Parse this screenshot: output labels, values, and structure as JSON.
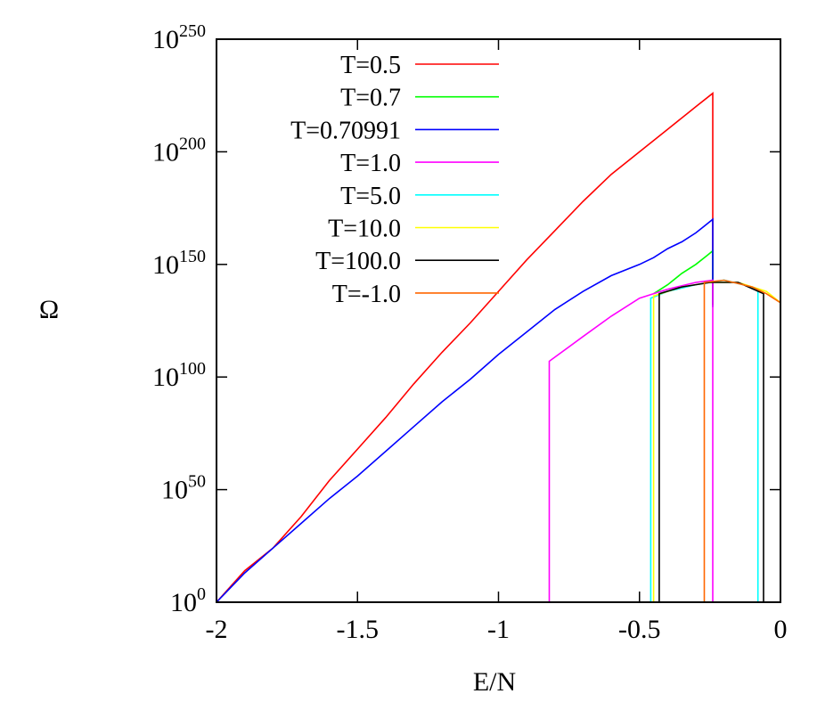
{
  "chart_data": {
    "type": "line",
    "xlabel": "E/N",
    "ylabel": "Ω",
    "xlim": [
      -2,
      0
    ],
    "ylim_log10": [
      0,
      250
    ],
    "y_scale": "log",
    "grid": false,
    "legend_placement": "top-left",
    "x_ticks": [
      {
        "value": -2,
        "label": "-2"
      },
      {
        "value": -1.5,
        "label": "-1.5"
      },
      {
        "value": -1,
        "label": "-1"
      },
      {
        "value": -0.5,
        "label": "-0.5"
      },
      {
        "value": 0,
        "label": "0"
      }
    ],
    "y_ticks": [
      {
        "value": 0,
        "base": "10",
        "exp": "0"
      },
      {
        "value": 50,
        "base": "10",
        "exp": "50"
      },
      {
        "value": 100,
        "base": "10",
        "exp": "100"
      },
      {
        "value": 150,
        "base": "10",
        "exp": "150"
      },
      {
        "value": 200,
        "base": "10",
        "exp": "200"
      },
      {
        "value": 250,
        "base": "10",
        "exp": "250"
      }
    ],
    "series": [
      {
        "name": "T=0.5",
        "color": "#ff0000",
        "points": [
          [
            -2,
            0
          ],
          [
            -1.9,
            14
          ],
          [
            -1.8,
            24
          ],
          [
            -1.7,
            38
          ],
          [
            -1.6,
            54
          ],
          [
            -1.5,
            68
          ],
          [
            -1.4,
            82
          ],
          [
            -1.3,
            97
          ],
          [
            -1.2,
            111
          ],
          [
            -1.1,
            124
          ],
          [
            -1.0,
            138
          ],
          [
            -0.9,
            152
          ],
          [
            -0.8,
            165
          ],
          [
            -0.7,
            178
          ],
          [
            -0.6,
            190
          ],
          [
            -0.5,
            200
          ],
          [
            -0.4,
            210
          ],
          [
            -0.3,
            220
          ],
          [
            -0.24,
            226
          ],
          [
            -0.24,
            132
          ]
        ]
      },
      {
        "name": "T=0.7",
        "color": "#00ff00",
        "points": [
          [
            -0.45,
            137
          ],
          [
            -0.4,
            141
          ],
          [
            -0.35,
            146
          ],
          [
            -0.3,
            150
          ],
          [
            -0.26,
            154
          ],
          [
            -0.24,
            156
          ],
          [
            -0.24,
            132
          ]
        ]
      },
      {
        "name": "T=0.70991",
        "color": "#0000ff",
        "points": [
          [
            -2,
            0
          ],
          [
            -1.9,
            13
          ],
          [
            -1.8,
            24
          ],
          [
            -1.7,
            35
          ],
          [
            -1.6,
            46
          ],
          [
            -1.5,
            56
          ],
          [
            -1.4,
            67
          ],
          [
            -1.3,
            78
          ],
          [
            -1.2,
            89
          ],
          [
            -1.1,
            99
          ],
          [
            -1.0,
            110
          ],
          [
            -0.9,
            120
          ],
          [
            -0.8,
            130
          ],
          [
            -0.7,
            138
          ],
          [
            -0.6,
            145
          ],
          [
            -0.5,
            150
          ],
          [
            -0.45,
            153
          ],
          [
            -0.4,
            157
          ],
          [
            -0.35,
            160
          ],
          [
            -0.3,
            164
          ],
          [
            -0.26,
            168
          ],
          [
            -0.24,
            170
          ],
          [
            -0.24,
            131
          ]
        ]
      },
      {
        "name": "T=1.0",
        "color": "#ff00ff",
        "points": [
          [
            -0.82,
            0
          ],
          [
            -0.82,
            107
          ],
          [
            -0.7,
            118
          ],
          [
            -0.6,
            127
          ],
          [
            -0.5,
            135
          ],
          [
            -0.4,
            139
          ],
          [
            -0.3,
            142
          ],
          [
            -0.24,
            143
          ],
          [
            -0.24,
            0
          ]
        ]
      },
      {
        "name": "T=5.0",
        "color": "#00ffff",
        "points": [
          [
            -0.46,
            0
          ],
          [
            -0.46,
            135
          ],
          [
            -0.4,
            138
          ],
          [
            -0.3,
            141
          ],
          [
            -0.2,
            143
          ],
          [
            -0.1,
            140
          ],
          [
            -0.08,
            138
          ],
          [
            -0.08,
            0
          ]
        ]
      },
      {
        "name": "T=10.0",
        "color": "#ffff00",
        "points": [
          [
            -0.45,
            0
          ],
          [
            -0.45,
            136
          ],
          [
            -0.35,
            140
          ],
          [
            -0.25,
            142
          ],
          [
            -0.15,
            142
          ],
          [
            -0.05,
            138
          ],
          [
            0,
            133
          ]
        ]
      },
      {
        "name": "T=100.0",
        "color": "#000000",
        "points": [
          [
            -0.43,
            0
          ],
          [
            -0.43,
            137
          ],
          [
            -0.35,
            140
          ],
          [
            -0.25,
            142
          ],
          [
            -0.15,
            142
          ],
          [
            -0.06,
            137
          ],
          [
            -0.06,
            0
          ]
        ]
      },
      {
        "name": "T=-1.0",
        "color": "#ff6600",
        "points": [
          [
            -0.27,
            0
          ],
          [
            -0.27,
            142
          ],
          [
            -0.2,
            143
          ],
          [
            -0.1,
            140
          ],
          [
            -0.05,
            137
          ],
          [
            0,
            133
          ]
        ]
      }
    ]
  }
}
